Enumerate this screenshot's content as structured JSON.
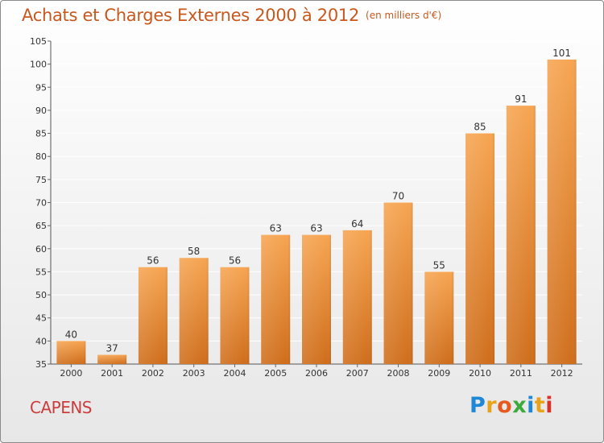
{
  "title": "Achats et Charges Externes 2000 à 2012",
  "subtitle": "(en milliers d'€)",
  "location": "CAPENS",
  "brand": {
    "text": "Proxiti",
    "letters": [
      {
        "char": "P",
        "color": "#1e88d6"
      },
      {
        "char": "r",
        "color": "#e8a31c"
      },
      {
        "char": "o",
        "color": "#e65a1f"
      },
      {
        "char": "x",
        "color": "#3cab3c"
      },
      {
        "char": "i",
        "color": "#1e88d6"
      },
      {
        "char": "t",
        "color": "#e8a31c"
      },
      {
        "char": "i",
        "color": "#d6342b"
      }
    ]
  },
  "colors": {
    "title": "#c8581d",
    "location": "#cc3d3d",
    "bar_top": "#f6a552",
    "bar_bottom": "#cf6e1c",
    "grid": "#ffffff",
    "axis_text": "#333333"
  },
  "chart_data": {
    "type": "bar",
    "title": "Achats et Charges Externes 2000 à 2012",
    "subtitle": "(en milliers d'€)",
    "categories": [
      "2000",
      "2001",
      "2002",
      "2003",
      "2004",
      "2005",
      "2006",
      "2007",
      "2008",
      "2009",
      "2010",
      "2011",
      "2012"
    ],
    "values": [
      40,
      37,
      56,
      58,
      56,
      63,
      63,
      64,
      70,
      55,
      85,
      91,
      101
    ],
    "ylim": [
      35,
      105
    ],
    "yticks": [
      35,
      40,
      45,
      50,
      55,
      60,
      65,
      70,
      75,
      80,
      85,
      90,
      95,
      100,
      105
    ],
    "grid": true,
    "data_labels": true,
    "xlabel": "",
    "ylabel": ""
  }
}
